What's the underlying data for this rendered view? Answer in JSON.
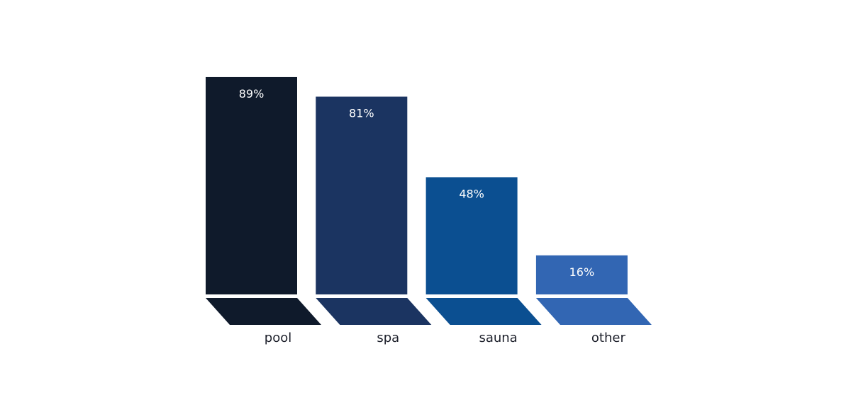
{
  "chart_data": {
    "type": "bar",
    "title": "",
    "xlabel": "",
    "ylabel": "",
    "categories": [
      "pool",
      "spa",
      "sauna",
      "other"
    ],
    "values": [
      89,
      81,
      48,
      16
    ],
    "value_labels": [
      "89%",
      "81%",
      "48%",
      "16%"
    ],
    "unit": "%",
    "ylim": [
      0,
      100
    ],
    "grid": false,
    "legend": "none",
    "bar_colors": [
      "#0f1a2b",
      "#1b3461",
      "#0b4f91",
      "#3266b3"
    ]
  }
}
